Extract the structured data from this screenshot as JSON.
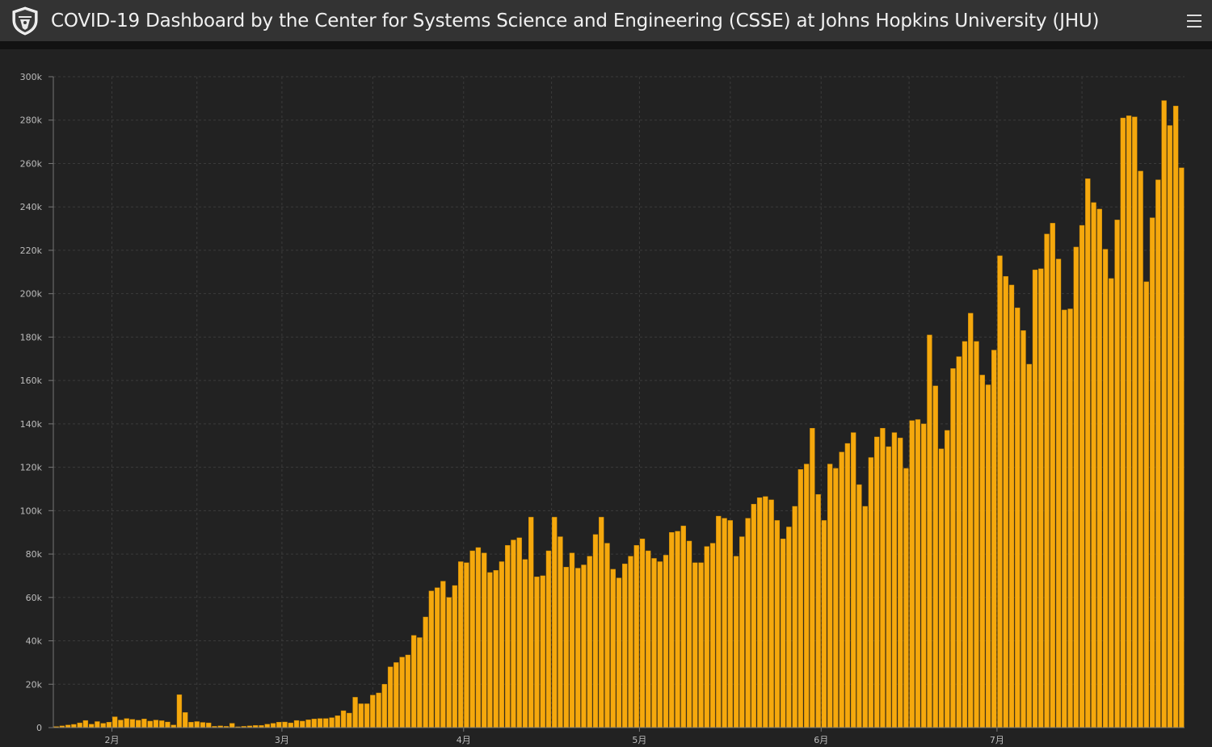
{
  "header": {
    "title": "COVID-19 Dashboard by the Center for Systems Science and Engineering (CSSE) at Johns Hopkins University (JHU)",
    "logo_icon": "jhu-shield-icon",
    "menu_icon": "hamburger-menu-icon"
  },
  "colors": {
    "bar": "#f5a80d",
    "bar_edge": "#c88500",
    "background": "#222222",
    "header_bg": "#333333",
    "grid": "#3b3b3b"
  },
  "chart_data": {
    "type": "bar",
    "title": "",
    "xlabel": "",
    "ylabel": "",
    "ylim": [
      0,
      300000
    ],
    "yticks": [
      0,
      20000,
      40000,
      60000,
      80000,
      100000,
      120000,
      140000,
      160000,
      180000,
      200000,
      220000,
      240000,
      260000,
      280000,
      300000
    ],
    "ytick_labels": [
      "0",
      "20k",
      "40k",
      "60k",
      "80k",
      "100k",
      "120k",
      "140k",
      "160k",
      "180k",
      "200k",
      "220k",
      "240k",
      "260k",
      "280k",
      "300k"
    ],
    "x_start": "2020-01-22",
    "xticks": [
      {
        "label": "2月",
        "date": "2020-02-01"
      },
      {
        "label": "3月",
        "date": "2020-03-01"
      },
      {
        "label": "4月",
        "date": "2020-04-01"
      },
      {
        "label": "5月",
        "date": "2020-05-01"
      },
      {
        "label": "6月",
        "date": "2020-06-01"
      },
      {
        "label": "7月",
        "date": "2020-07-01"
      }
    ],
    "grid": true,
    "values": [
      500,
      800,
      1200,
      1500,
      2200,
      3300,
      1600,
      2800,
      2000,
      2500,
      5000,
      3500,
      4200,
      3800,
      3400,
      4000,
      3000,
      3500,
      3200,
      2600,
      1200,
      15200,
      7000,
      2500,
      2800,
      2400,
      2200,
      600,
      800,
      600,
      2000,
      400,
      600,
      800,
      1000,
      1000,
      1600,
      2000,
      2500,
      2600,
      2200,
      3300,
      3000,
      3600,
      4000,
      4200,
      4200,
      4600,
      5500,
      7800,
      6700,
      14000,
      11000,
      11000,
      15000,
      16000,
      20000,
      28000,
      30000,
      32500,
      33500,
      42500,
      41500,
      51000,
      63000,
      64500,
      67500,
      60000,
      65500,
      76500,
      76000,
      81500,
      83000,
      80500,
      71500,
      72500,
      76500,
      84000,
      86500,
      87500,
      77500,
      97000,
      69500,
      70000,
      81500,
      97000,
      88000,
      74000,
      80500,
      73500,
      75000,
      79000,
      89000,
      97000,
      85000,
      73000,
      69000,
      75500,
      79000,
      84000,
      87000,
      81500,
      78000,
      76500,
      79500,
      90000,
      90500,
      93000,
      86000,
      76000,
      76000,
      83500,
      85000,
      97500,
      96500,
      95500,
      79000,
      88000,
      96500,
      103000,
      106000,
      106500,
      105000,
      95500,
      87000,
      92500,
      102000,
      119000,
      121500,
      138000,
      107500,
      95500,
      121500,
      119500,
      127000,
      131000,
      136000,
      112000,
      102000,
      124500,
      134000,
      138000,
      129500,
      136000,
      133500,
      119500,
      141500,
      142000,
      140000,
      181000,
      157500,
      128500,
      137000,
      165500,
      171000,
      178000,
      191000,
      178000,
      162500,
      158000,
      174000,
      217500,
      208000,
      204000,
      193500,
      183000,
      167500,
      211000,
      211500,
      227500,
      232500,
      216000,
      192500,
      193000,
      221500,
      231500,
      253000,
      242000,
      239000,
      220500,
      207000,
      234000,
      281000,
      282000,
      281500,
      256500,
      205500,
      235000,
      252500,
      289000,
      277500,
      286500,
      258000
    ]
  }
}
